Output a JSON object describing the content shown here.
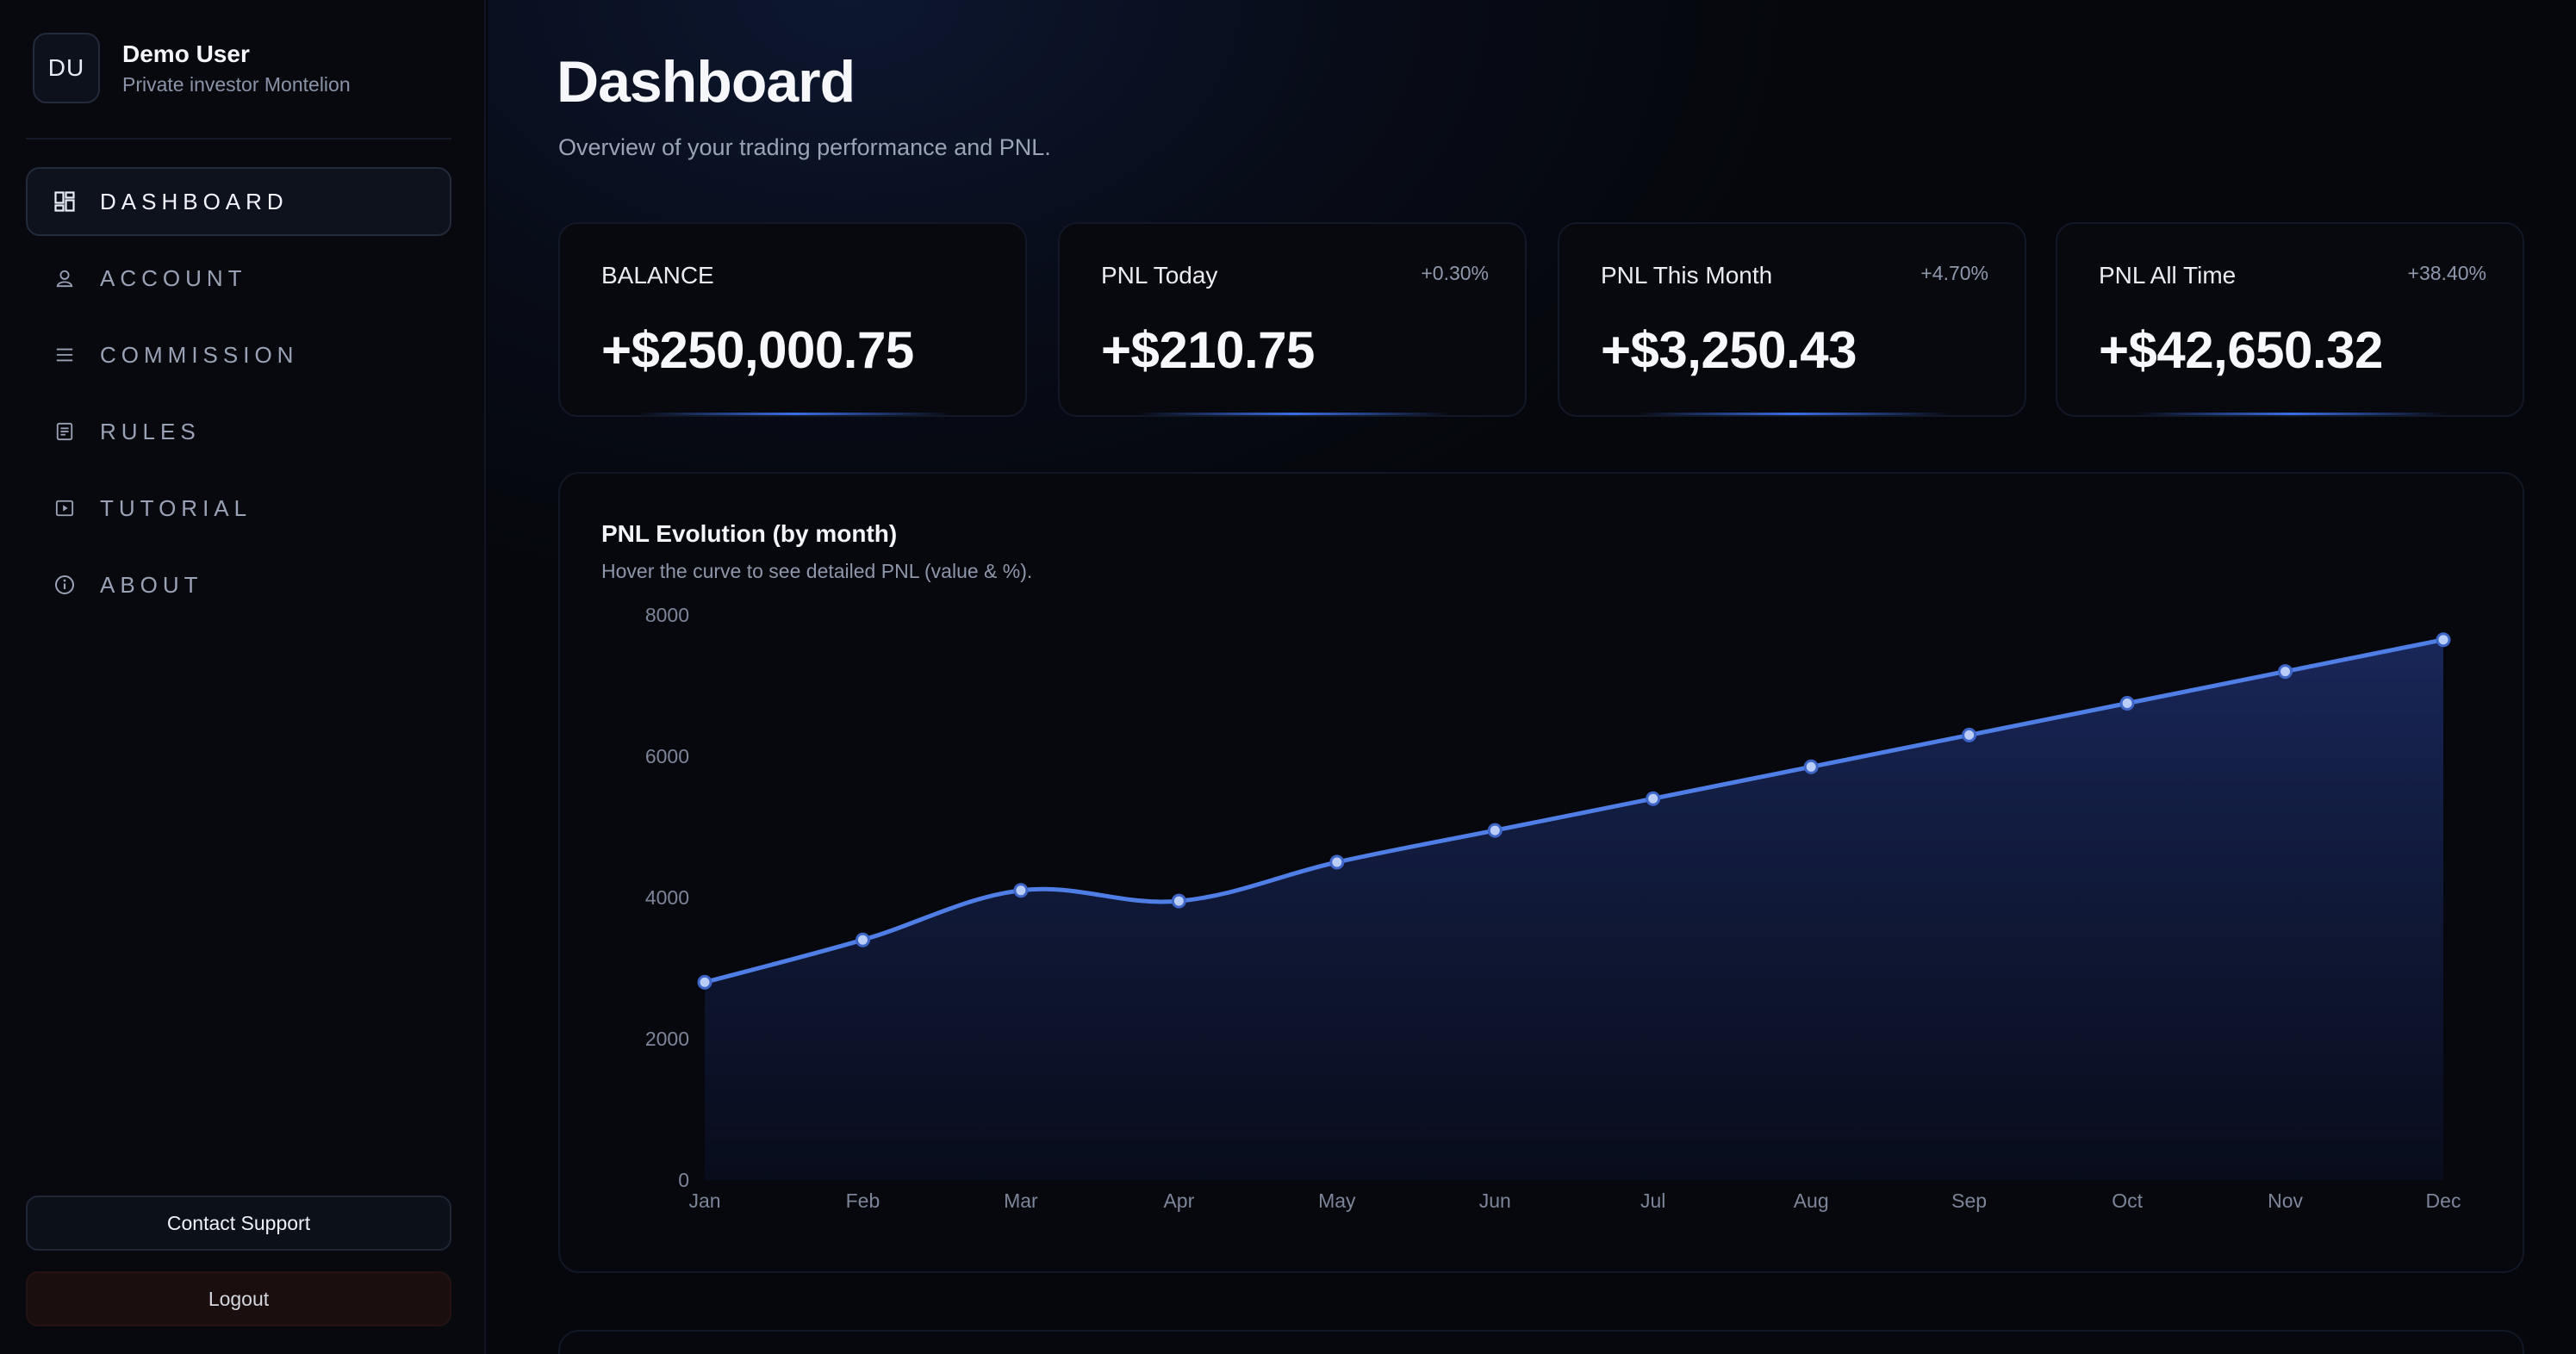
{
  "profile": {
    "initials": "DU",
    "name": "Demo User",
    "subtitle": "Private investor Montelion"
  },
  "nav": {
    "items": [
      {
        "label": "DASHBOARD",
        "icon": "dashboard-icon",
        "active": true
      },
      {
        "label": "ACCOUNT",
        "icon": "user-icon",
        "active": false
      },
      {
        "label": "COMMISSION",
        "icon": "list-icon",
        "active": false
      },
      {
        "label": "RULES",
        "icon": "document-icon",
        "active": false
      },
      {
        "label": "TUTORIAL",
        "icon": "play-icon",
        "active": false
      },
      {
        "label": "ABOUT",
        "icon": "info-icon",
        "active": false
      }
    ]
  },
  "footer": {
    "support_label": "Contact Support",
    "logout_label": "Logout"
  },
  "page": {
    "title": "Dashboard",
    "subtitle": "Overview of your trading performance and PNL."
  },
  "cards": [
    {
      "label": "BALANCE",
      "delta": "",
      "value": "+$250,000.75"
    },
    {
      "label": "PNL Today",
      "delta": "+0.30%",
      "value": "+$210.75"
    },
    {
      "label": "PNL This Month",
      "delta": "+4.70%",
      "value": "+$3,250.43"
    },
    {
      "label": "PNL All Time",
      "delta": "+38.40%",
      "value": "+$42,650.32"
    }
  ],
  "chart": {
    "title": "PNL Evolution (by month)",
    "subtitle": "Hover the curve to see detailed PNL (value & %)."
  },
  "colors": {
    "accent": "#4f7fe6",
    "background": "#05070c",
    "card": "#07090f"
  },
  "chart_data": {
    "type": "area",
    "title": "PNL Evolution (by month)",
    "x": [
      "Jan",
      "Feb",
      "Mar",
      "Apr",
      "May",
      "Jun",
      "Jul",
      "Aug",
      "Sep",
      "Oct",
      "Nov",
      "Dec"
    ],
    "values": [
      2800,
      3400,
      4100,
      3950,
      4500,
      4950,
      5400,
      5850,
      6300,
      6750,
      7200,
      7650
    ],
    "ylim": [
      0,
      8000
    ],
    "yticks": [
      0,
      2000,
      4000,
      6000,
      8000
    ],
    "grid": false,
    "legend": "none"
  }
}
